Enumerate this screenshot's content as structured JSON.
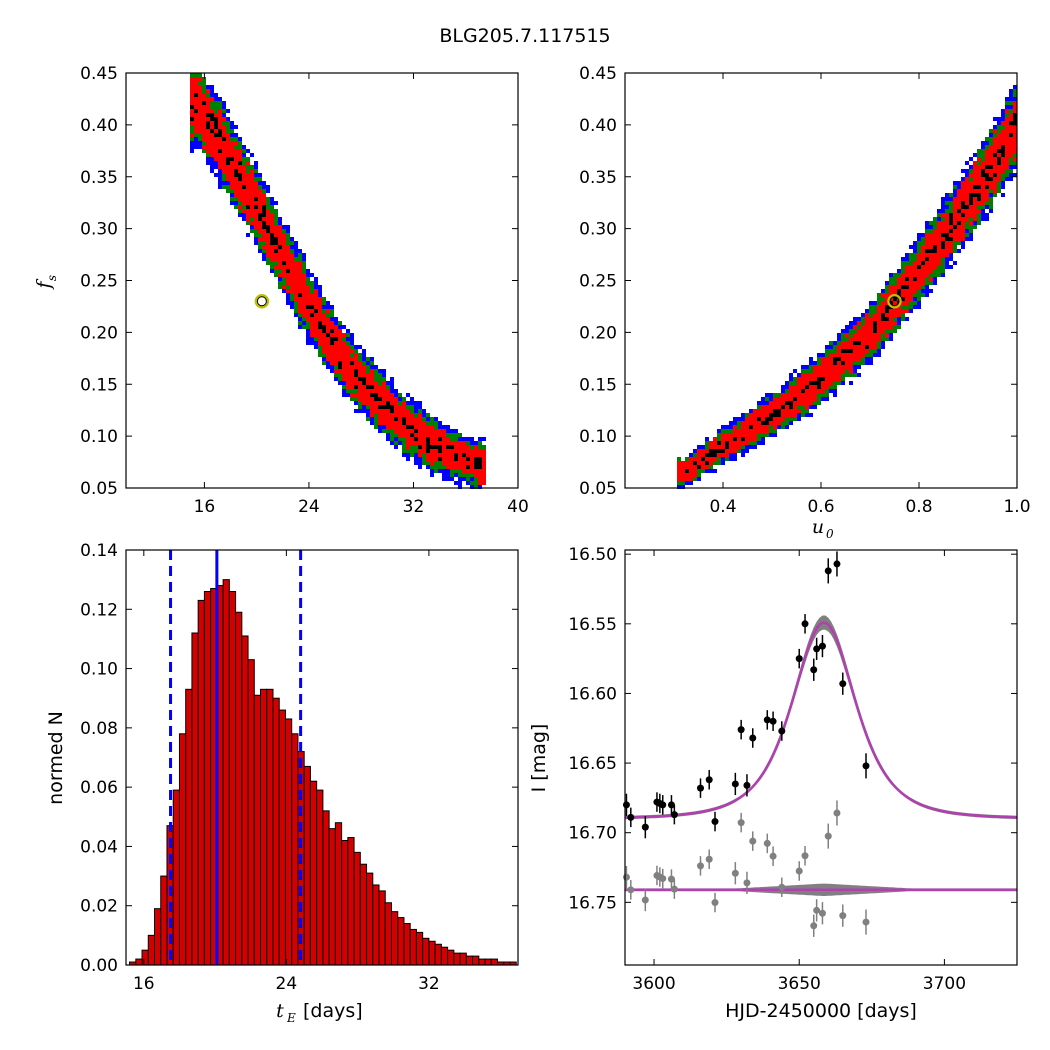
{
  "figure_title": "BLG205.7.117515",
  "colors": {
    "contour_outer": "#0000ff",
    "contour_mid": "#008000",
    "contour_inner": "#ff0000",
    "contour_core": "#000000",
    "best_fit_marker": "#bfbf00",
    "hist_bar": "#d40000",
    "hist_lines": "#0000ff",
    "model_curve": "#b040b0",
    "model_band": "#808080",
    "data_points": "#000000",
    "residual_points": "#808080"
  },
  "chart_data": [
    {
      "id": "panel-fs-vs-tE",
      "type": "heatmap",
      "xlabel": "",
      "ylabel_main": "f",
      "ylabel_sub": "s",
      "xlim": [
        10,
        40
      ],
      "ylim": [
        0.05,
        0.45
      ],
      "xticks": [
        16,
        24,
        32,
        40
      ],
      "yticks": [
        0.05,
        0.1,
        0.15,
        0.2,
        0.25,
        0.3,
        0.35,
        0.4,
        0.45
      ],
      "ridge": {
        "x": [
          15.5,
          17,
          18.5,
          20,
          21.5,
          23,
          24.5,
          26,
          27.5,
          29,
          30.5,
          32,
          33.5,
          35,
          37
        ],
        "y": [
          0.42,
          0.39,
          0.355,
          0.32,
          0.285,
          0.25,
          0.215,
          0.185,
          0.16,
          0.14,
          0.12,
          0.105,
          0.092,
          0.082,
          0.072
        ]
      },
      "best_fit": {
        "x": 20.4,
        "y": 0.23
      }
    },
    {
      "id": "panel-fs-vs-u0",
      "type": "heatmap",
      "xlabel_main": "u",
      "xlabel_sub": "0",
      "ylabel": "",
      "xlim": [
        0.2,
        1.0
      ],
      "ylim": [
        0.05,
        0.45
      ],
      "xticks": [
        0.4,
        0.6,
        0.8,
        1.0
      ],
      "yticks": [
        0.05,
        0.1,
        0.15,
        0.2,
        0.25,
        0.3,
        0.35,
        0.4,
        0.45
      ],
      "ridge": {
        "x": [
          0.32,
          0.4,
          0.5,
          0.6,
          0.7,
          0.75,
          0.8,
          0.85,
          0.9,
          0.95,
          1.0
        ],
        "y": [
          0.065,
          0.09,
          0.12,
          0.155,
          0.2,
          0.228,
          0.26,
          0.29,
          0.325,
          0.36,
          0.4
        ]
      },
      "best_fit": {
        "x": 0.75,
        "y": 0.23
      }
    },
    {
      "id": "panel-tE-histogram",
      "type": "bar",
      "xlabel_main": "t",
      "xlabel_sub": "E",
      "xlabel_unit": "[days]",
      "ylabel": "normed N",
      "xlim": [
        15,
        37
      ],
      "ylim": [
        0.0,
        0.14
      ],
      "xticks": [
        16,
        24,
        32
      ],
      "yticks": [
        0.0,
        0.02,
        0.04,
        0.06,
        0.08,
        0.1,
        0.12,
        0.14
      ],
      "bin_width": 0.35,
      "bin_start": 15.2,
      "values": [
        0.001,
        0.002,
        0.005,
        0.01,
        0.019,
        0.03,
        0.047,
        0.059,
        0.078,
        0.093,
        0.112,
        0.123,
        0.126,
        0.127,
        0.128,
        0.13,
        0.126,
        0.119,
        0.111,
        0.103,
        0.091,
        0.093,
        0.093,
        0.09,
        0.086,
        0.083,
        0.078,
        0.072,
        0.067,
        0.062,
        0.059,
        0.052,
        0.046,
        0.048,
        0.042,
        0.043,
        0.038,
        0.034,
        0.031,
        0.027,
        0.025,
        0.021,
        0.018,
        0.016,
        0.014,
        0.012,
        0.011,
        0.009,
        0.008,
        0.007,
        0.006,
        0.005,
        0.004,
        0.004,
        0.003,
        0.003,
        0.002,
        0.002,
        0.002,
        0.001,
        0.001,
        0.001
      ],
      "median": 20.1,
      "ci_low": 17.5,
      "ci_high": 24.8
    },
    {
      "id": "panel-lightcurve",
      "type": "scatter",
      "xlabel": "HJD-2450000 [days]",
      "ylabel": "I [mag]",
      "xlim": [
        3590,
        3725
      ],
      "ylim": [
        16.795,
        16.497
      ],
      "xticks": [
        3600,
        3650,
        3700
      ],
      "yticks": [
        16.5,
        16.55,
        16.6,
        16.65,
        16.7,
        16.75
      ],
      "ytick_labels": [
        "16.50",
        "16.55",
        "16.60",
        "16.65",
        "16.70",
        "16.75"
      ],
      "model": {
        "baseline": 16.69,
        "peak_mag": 16.549,
        "t0": 3658.5,
        "tE": 20.4
      },
      "residual_offset": 16.741,
      "observations": [
        {
          "x": 3590.5,
          "y": 16.68,
          "e": 0.008
        },
        {
          "x": 3592,
          "y": 16.689,
          "e": 0.007
        },
        {
          "x": 3597,
          "y": 16.696,
          "e": 0.008
        },
        {
          "x": 3601,
          "y": 16.678,
          "e": 0.007
        },
        {
          "x": 3602,
          "y": 16.679,
          "e": 0.007
        },
        {
          "x": 3603,
          "y": 16.68,
          "e": 0.007
        },
        {
          "x": 3606,
          "y": 16.68,
          "e": 0.007
        },
        {
          "x": 3607,
          "y": 16.687,
          "e": 0.007
        },
        {
          "x": 3616,
          "y": 16.668,
          "e": 0.007
        },
        {
          "x": 3619,
          "y": 16.662,
          "e": 0.007
        },
        {
          "x": 3621,
          "y": 16.692,
          "e": 0.007
        },
        {
          "x": 3628,
          "y": 16.665,
          "e": 0.008
        },
        {
          "x": 3630,
          "y": 16.626,
          "e": 0.007
        },
        {
          "x": 3632,
          "y": 16.666,
          "e": 0.008
        },
        {
          "x": 3634,
          "y": 16.632,
          "e": 0.007
        },
        {
          "x": 3639,
          "y": 16.619,
          "e": 0.007
        },
        {
          "x": 3641,
          "y": 16.62,
          "e": 0.007
        },
        {
          "x": 3644,
          "y": 16.627,
          "e": 0.007
        },
        {
          "x": 3650,
          "y": 16.575,
          "e": 0.007
        },
        {
          "x": 3652,
          "y": 16.55,
          "e": 0.007
        },
        {
          "x": 3655,
          "y": 16.583,
          "e": 0.008
        },
        {
          "x": 3656,
          "y": 16.568,
          "e": 0.008
        },
        {
          "x": 3658,
          "y": 16.566,
          "e": 0.008
        },
        {
          "x": 3660,
          "y": 16.512,
          "e": 0.009
        },
        {
          "x": 3663,
          "y": 16.507,
          "e": 0.009
        },
        {
          "x": 3665,
          "y": 16.593,
          "e": 0.008
        },
        {
          "x": 3673,
          "y": 16.652,
          "e": 0.009
        }
      ]
    }
  ]
}
